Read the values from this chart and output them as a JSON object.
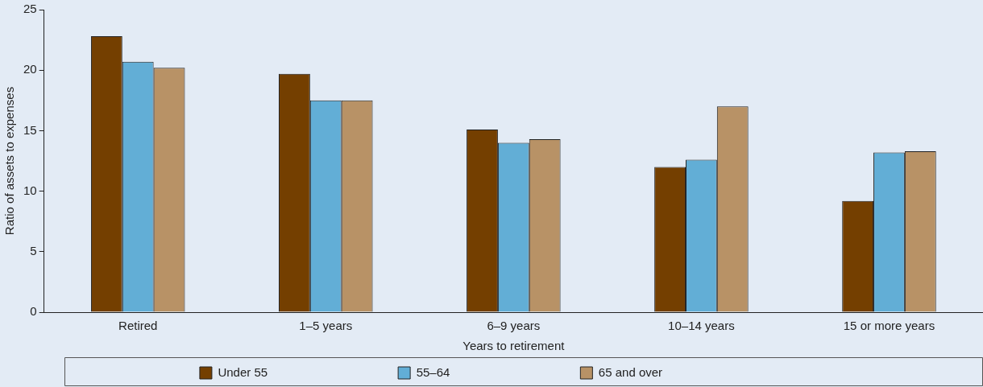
{
  "chart_data": {
    "type": "bar",
    "xlabel": "Years to retirement",
    "ylabel": "Ratio of assets to expenses",
    "categories": [
      "Retired",
      "1–5 years",
      "6–9 years",
      "10–14 years",
      "15 or more years"
    ],
    "series": [
      {
        "name": "Under 55",
        "color": "#743f00",
        "values": [
          22.8,
          19.7,
          15.1,
          12.0,
          9.2
        ]
      },
      {
        "name": "55–64",
        "color": "#62aed6",
        "values": [
          20.7,
          17.5,
          14.0,
          12.6,
          13.2
        ]
      },
      {
        "name": "65 and over",
        "color": "#b89266",
        "values": [
          20.2,
          17.5,
          14.3,
          17.0,
          13.3
        ]
      }
    ],
    "ylim": [
      0,
      25
    ],
    "yticks": [
      0,
      5,
      10,
      15,
      20,
      25
    ],
    "grid": false,
    "legend": "bottom"
  }
}
